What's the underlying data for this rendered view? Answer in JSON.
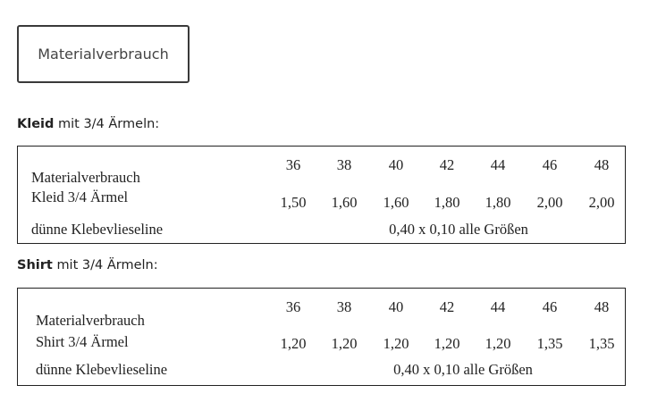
{
  "tab": {
    "label": "Materialverbrauch"
  },
  "sections": [
    {
      "heading_bold": "Kleid",
      "heading_rest": "mit 3/4 Ärmeln:",
      "table": {
        "label_lines": [
          "Materialverbrauch",
          "Kleid 3/4 Ärmel"
        ],
        "sizes": [
          "36",
          "38",
          "40",
          "42",
          "44",
          "46",
          "48"
        ],
        "values": [
          "1,50",
          "1,60",
          "1,60",
          "1,80",
          "1,80",
          "2,00",
          "2,00"
        ],
        "interfacing_label": "dünne Klebevlieseline",
        "interfacing_value": "0,40 x 0,10 alle Größen"
      }
    },
    {
      "heading_bold": "Shirt",
      "heading_rest": "mit 3/4 Ärmeln:",
      "table": {
        "label_lines": [
          "Materialverbrauch",
          "Shirt 3/4 Ärmel"
        ],
        "sizes": [
          "36",
          "38",
          "40",
          "42",
          "44",
          "46",
          "48"
        ],
        "values": [
          "1,20",
          "1,20",
          "1,20",
          "1,20",
          "1,20",
          "1,35",
          "1,35"
        ],
        "interfacing_label": "dünne Klebevlieseline",
        "interfacing_value": "0,40 x 0,10 alle Größen"
      }
    }
  ]
}
